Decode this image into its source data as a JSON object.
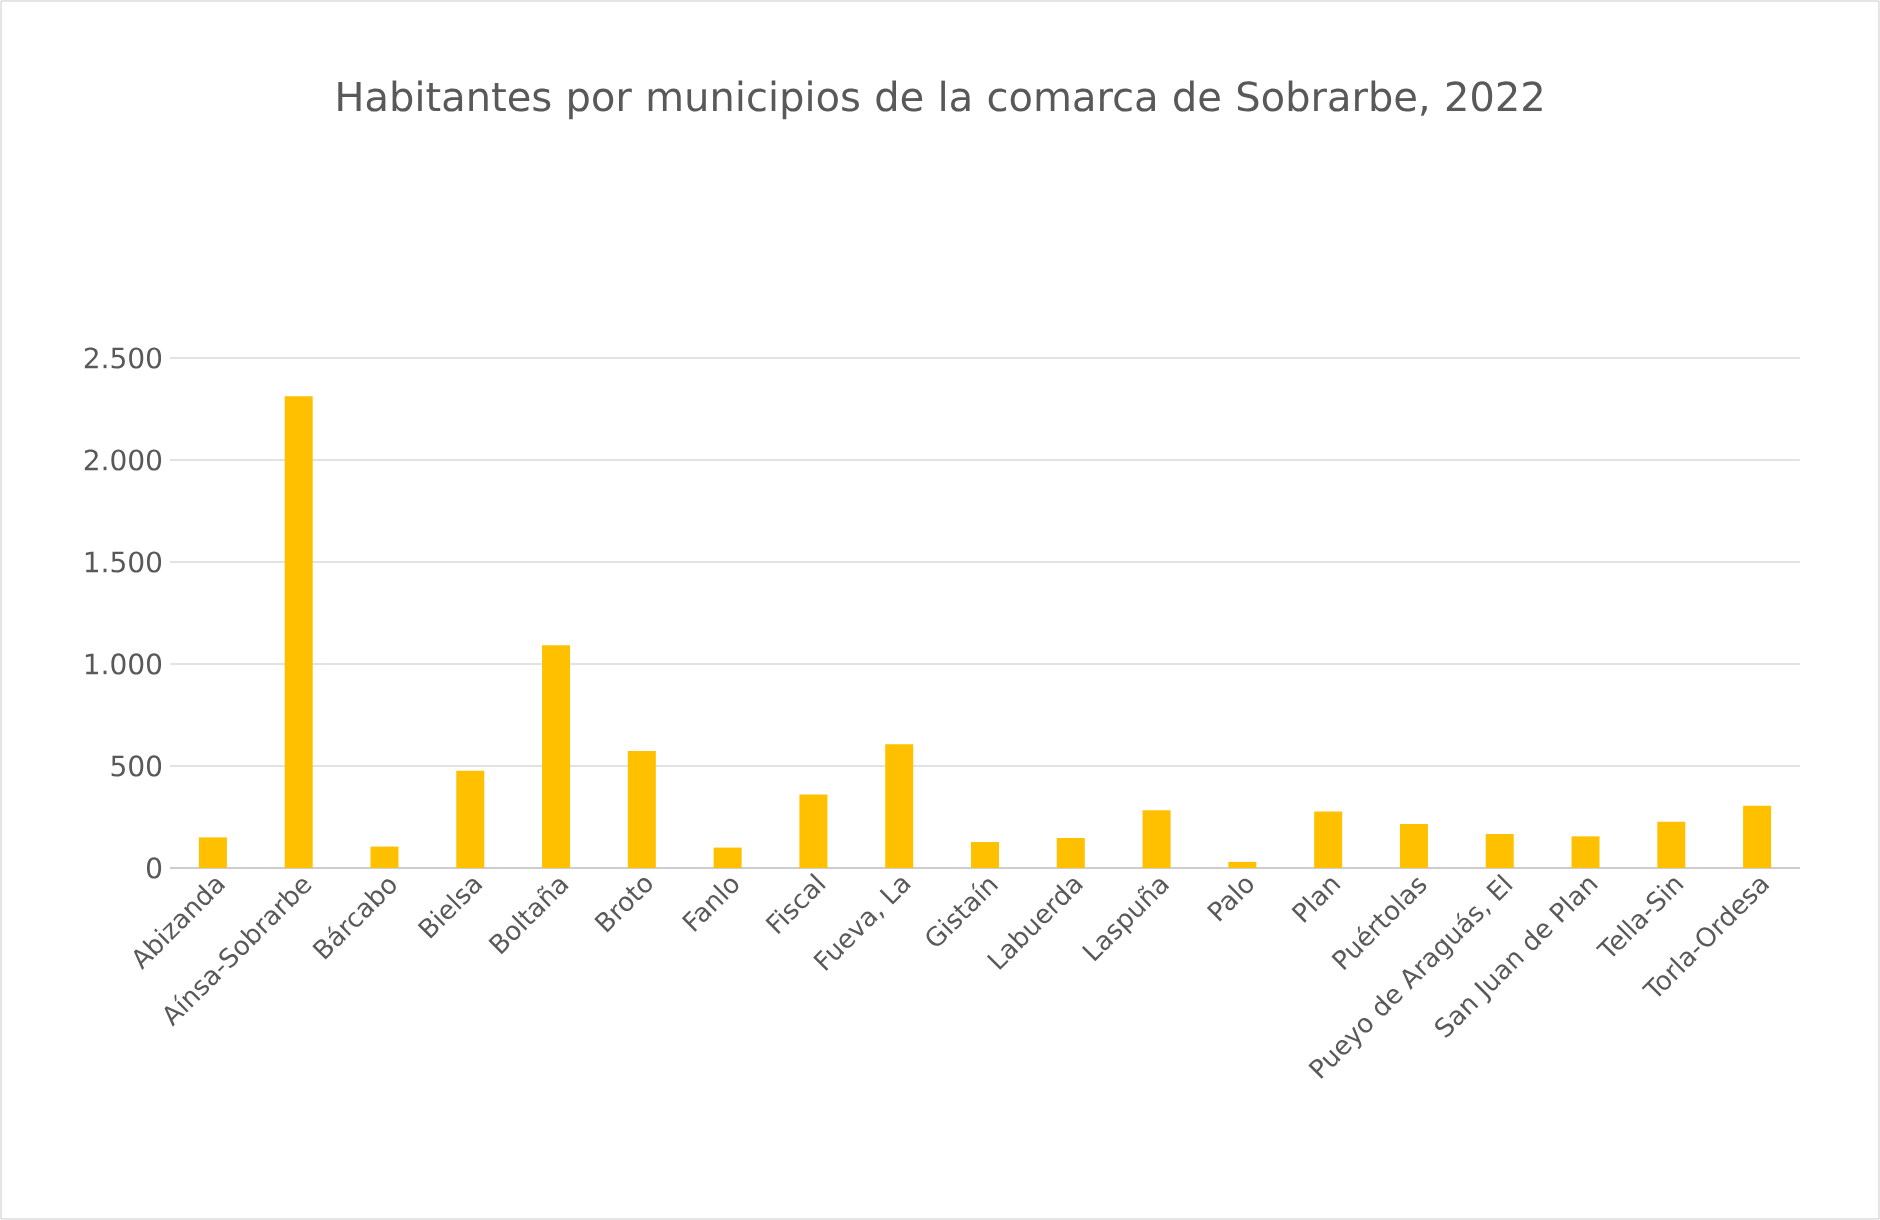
{
  "chart_data": {
    "type": "bar",
    "title": "Habitantes por municipios de la comarca de Sobrarbe, 2022",
    "categories": [
      "Abizanda",
      "Aínsa-Sobrarbe",
      "Bárcabo",
      "Bielsa",
      "Boltaña",
      "Broto",
      "Fanlo",
      "Fiscal",
      "Fueva, La",
      "Gistaín",
      "Labuerda",
      "Laspuña",
      "Palo",
      "Plan",
      "Puértolas",
      "Pueyo de Araguás, El",
      "San Juan de Plan",
      "Tella-Sin",
      "Torla-Ordesa"
    ],
    "values": [
      150,
      2312,
      105,
      477,
      1092,
      574,
      100,
      360,
      607,
      127,
      147,
      283,
      30,
      277,
      216,
      166,
      155,
      227,
      305
    ],
    "color": "#ffc000",
    "ylim": [
      0,
      2500
    ],
    "yticks": [
      {
        "value": 0,
        "label": "0"
      },
      {
        "value": 500,
        "label": "500"
      },
      {
        "value": 1000,
        "label": "1.000"
      },
      {
        "value": 1500,
        "label": "1.500"
      },
      {
        "value": 2000,
        "label": "2.000"
      },
      {
        "value": 2500,
        "label": "2.500"
      }
    ],
    "grid": "y"
  }
}
